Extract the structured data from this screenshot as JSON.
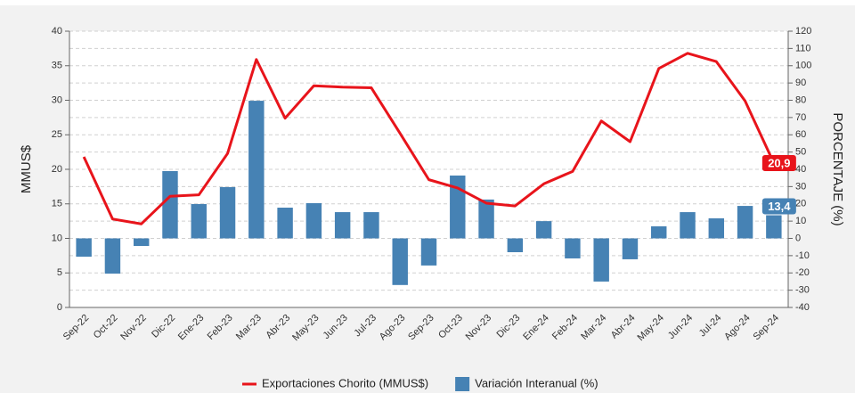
{
  "chart_data": {
    "type": "bar_line",
    "y_label": "MMUS$",
    "y2_label": "PORCENTAJE (%)",
    "categories": [
      "Sep-22",
      "Oct-22",
      "Nov-22",
      "Dic-22",
      "Ene-23",
      "Feb-23",
      "Mar-23",
      "Abr-23",
      "May-23",
      "Jun-23",
      "Jul-23",
      "Ago-23",
      "Sep-23",
      "Oct-23",
      "Nov-23",
      "Dic-23",
      "Ene-24",
      "Feb-24",
      "Mar-24",
      "Abr-24",
      "May-24",
      "Jun-24",
      "Jul-24",
      "Ago-24",
      "Sep-24"
    ],
    "series": [
      {
        "name": "Exportaciones Chorito (MMUS$)",
        "type": "line",
        "color": "#e8141b",
        "axis": "y",
        "values": [
          21.8,
          12.8,
          12.1,
          16.1,
          16.3,
          22.3,
          35.9,
          27.4,
          32.1,
          31.9,
          31.8,
          25.2,
          18.5,
          17.3,
          15.1,
          14.7,
          17.9,
          19.7,
          27.0,
          24.0,
          34.6,
          36.8,
          35.6,
          29.9,
          20.9
        ],
        "value_labels": [
          null,
          null,
          null,
          null,
          null,
          null,
          null,
          null,
          null,
          null,
          null,
          null,
          null,
          null,
          null,
          null,
          null,
          null,
          null,
          null,
          null,
          null,
          null,
          null,
          "20,9"
        ]
      },
      {
        "name": "Variación Interanual (%)",
        "type": "bar",
        "color": "#4682b4",
        "axis": "y2",
        "values": [
          -10.6,
          -20.4,
          -4.4,
          39,
          19.9,
          29.7,
          79.7,
          17.8,
          20.4,
          15.2,
          15.2,
          -27,
          -15.7,
          36.4,
          22.5,
          -8,
          10,
          -11.6,
          -25,
          -12.1,
          7,
          15.2,
          11.6,
          18.8,
          13.4
        ],
        "value_labels": [
          null,
          null,
          null,
          null,
          null,
          null,
          null,
          null,
          null,
          null,
          null,
          null,
          null,
          null,
          null,
          null,
          null,
          null,
          null,
          null,
          null,
          null,
          null,
          null,
          "13,4"
        ]
      }
    ],
    "ylim": [
      0,
      40
    ],
    "yticks": [
      0,
      5,
      10,
      15,
      20,
      25,
      30,
      35,
      40
    ],
    "y2lim": [
      -40,
      120
    ],
    "y2ticks": [
      -40,
      -30,
      -20,
      -10,
      0,
      10,
      20,
      30,
      40,
      50,
      60,
      70,
      80,
      90,
      100,
      110,
      120
    ],
    "grid": true,
    "legend": "bottom"
  }
}
